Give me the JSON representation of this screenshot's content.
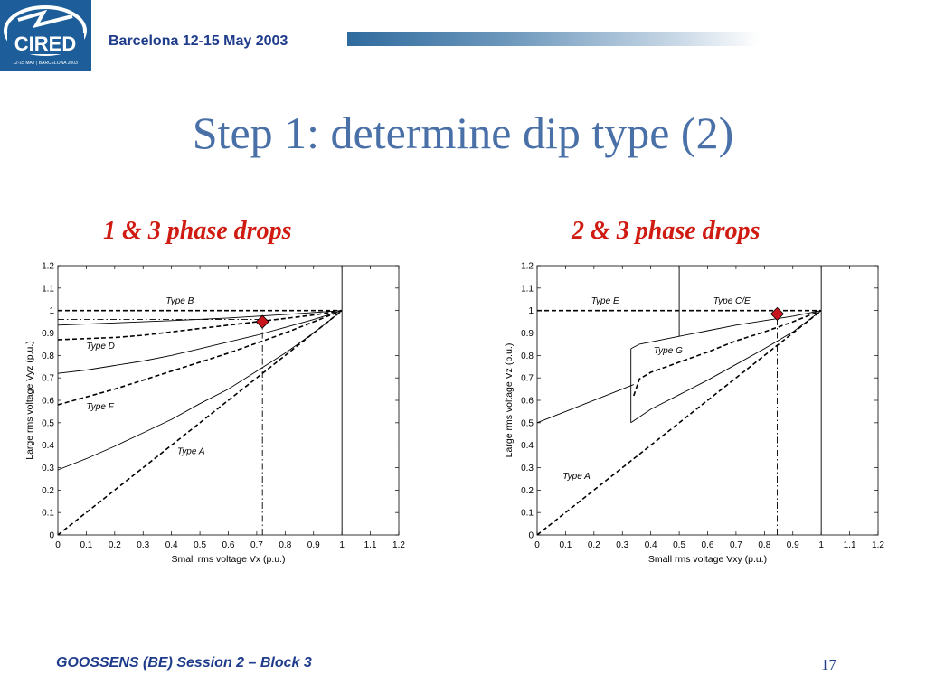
{
  "header": {
    "logo_text": "CIRED",
    "logo_subtext": "12-15 MAY | BARCELONA 2003",
    "event": "Barcelona  12-15 May 2003"
  },
  "slide": {
    "title": "Step 1: determine dip type (2)",
    "subheads": [
      "1 & 3 phase drops",
      "2 & 3 phase drops"
    ]
  },
  "footer": {
    "text": "GOOSSENS (BE) Session 2 – Block 3",
    "page": "17"
  },
  "colors": {
    "title": "#4a70a8",
    "header_text": "#1f3c8c",
    "subhead": "#d01b12",
    "marker": "#c8151d"
  },
  "chart_data": [
    {
      "type": "line",
      "xlabel": "Small rms voltage Vx (p.u.)",
      "ylabel": "Large rms voltage Vyz (p.u.)",
      "xlim": [
        0,
        1.2
      ],
      "ylim": [
        0,
        1.2
      ],
      "xticks": [
        0,
        0.1,
        0.2,
        0.3,
        0.4,
        0.5,
        0.6,
        0.7,
        0.8,
        0.9,
        1,
        1.1,
        1.2
      ],
      "yticks": [
        0,
        0.1,
        0.2,
        0.3,
        0.4,
        0.5,
        0.6,
        0.7,
        0.8,
        0.9,
        1,
        1.1,
        1.2
      ],
      "grid": false,
      "vlines": [
        1
      ],
      "series": [
        {
          "style": "dashed",
          "x": [
            0,
            1
          ],
          "y": [
            1,
            1
          ]
        },
        {
          "style": "dashed",
          "x": [
            0,
            0.1,
            0.2,
            0.3,
            0.4,
            0.5,
            0.6,
            0.7,
            0.8,
            0.9,
            1
          ],
          "y": [
            0.87,
            0.875,
            0.88,
            0.89,
            0.905,
            0.92,
            0.935,
            0.95,
            0.965,
            0.98,
            1
          ]
        },
        {
          "style": "dashed",
          "x": [
            0,
            0.1,
            0.2,
            0.3,
            0.4,
            0.5,
            0.6,
            0.7,
            0.8,
            0.9,
            1
          ],
          "y": [
            0.58,
            0.615,
            0.65,
            0.69,
            0.73,
            0.77,
            0.81,
            0.855,
            0.9,
            0.95,
            1
          ]
        },
        {
          "style": "dashed",
          "x": [
            0,
            1
          ],
          "y": [
            0,
            1
          ]
        },
        {
          "style": "solid",
          "x": [
            0,
            0.2,
            0.4,
            0.6,
            0.8,
            1
          ],
          "y": [
            0.935,
            0.945,
            0.955,
            0.967,
            0.982,
            1
          ]
        },
        {
          "style": "solid",
          "x": [
            0,
            0.1,
            0.2,
            0.3,
            0.4,
            0.5,
            0.6,
            0.7,
            0.8,
            0.9,
            1
          ],
          "y": [
            0.72,
            0.735,
            0.755,
            0.775,
            0.8,
            0.83,
            0.86,
            0.89,
            0.925,
            0.96,
            1
          ]
        },
        {
          "style": "solid",
          "x": [
            0,
            0.1,
            0.2,
            0.3,
            0.4,
            0.5,
            0.6,
            0.7,
            0.8,
            0.9,
            1
          ],
          "y": [
            0.29,
            0.34,
            0.395,
            0.455,
            0.515,
            0.585,
            0.65,
            0.73,
            0.81,
            0.9,
            1
          ]
        },
        {
          "style": "dashdot",
          "x": [
            0,
            0.72
          ],
          "y": [
            0.96,
            0.96
          ]
        },
        {
          "style": "dashdot",
          "x": [
            0.72,
            0.72
          ],
          "y": [
            0,
            0.95
          ]
        }
      ],
      "annotations": [
        {
          "text": "Type B",
          "x": 0.38,
          "y": 1.03
        },
        {
          "text": "Type D",
          "x": 0.1,
          "y": 0.83
        },
        {
          "text": "Type F",
          "x": 0.1,
          "y": 0.56
        },
        {
          "text": "Type A",
          "x": 0.42,
          "y": 0.36
        }
      ],
      "markers": [
        {
          "x": 0.72,
          "y": 0.95
        }
      ]
    },
    {
      "type": "line",
      "xlabel": "Small rms voltage Vxy (p.u.)",
      "ylabel": "Large rms voltage Vz (p.u.)",
      "xlim": [
        0,
        1.2
      ],
      "ylim": [
        0,
        1.2
      ],
      "xticks": [
        0,
        0.1,
        0.2,
        0.3,
        0.4,
        0.5,
        0.6,
        0.7,
        0.8,
        0.9,
        1,
        1.1,
        1.2
      ],
      "yticks": [
        0,
        0.1,
        0.2,
        0.3,
        0.4,
        0.5,
        0.6,
        0.7,
        0.8,
        0.9,
        1,
        1.1,
        1.2
      ],
      "grid": false,
      "vlines": [
        1
      ],
      "series": [
        {
          "style": "dashed",
          "x": [
            0,
            1
          ],
          "y": [
            1,
            1
          ]
        },
        {
          "style": "dashed",
          "x": [
            0,
            1
          ],
          "y": [
            0,
            1
          ]
        },
        {
          "style": "dashed",
          "x": [
            0.34,
            0.36,
            0.4,
            0.5,
            0.6,
            0.7,
            0.8,
            0.9,
            1
          ],
          "y": [
            0.62,
            0.695,
            0.725,
            0.77,
            0.815,
            0.865,
            0.905,
            0.95,
            1
          ]
        },
        {
          "style": "solid",
          "x": [
            0,
            0.34
          ],
          "y": [
            0.5,
            0.67
          ]
        },
        {
          "style": "solid",
          "x": [
            0.33,
            0.33
          ],
          "y": [
            0.5,
            0.83
          ]
        },
        {
          "style": "solid",
          "x": [
            0.33,
            0.4,
            0.5,
            0.6,
            0.7,
            0.8,
            0.9,
            1
          ],
          "y": [
            0.5,
            0.56,
            0.625,
            0.69,
            0.76,
            0.83,
            0.905,
            1
          ]
        },
        {
          "style": "solid",
          "x": [
            0.33,
            0.36,
            0.4,
            0.5,
            0.6,
            0.7,
            0.8,
            0.9,
            1
          ],
          "y": [
            0.83,
            0.85,
            0.86,
            0.885,
            0.91,
            0.935,
            0.955,
            0.975,
            1
          ]
        },
        {
          "style": "solid",
          "x": [
            0.5,
            0.5
          ],
          "y": [
            0.885,
            1.2
          ]
        },
        {
          "style": "dashdot",
          "x": [
            0,
            0.845
          ],
          "y": [
            0.985,
            0.985
          ]
        },
        {
          "style": "dashdot",
          "x": [
            0.845,
            0.845
          ],
          "y": [
            0,
            0.985
          ]
        }
      ],
      "annotations": [
        {
          "text": "Type E",
          "x": 0.19,
          "y": 1.03
        },
        {
          "text": "Type C/E",
          "x": 0.62,
          "y": 1.03
        },
        {
          "text": "Type G",
          "x": 0.41,
          "y": 0.81
        },
        {
          "text": "Type A",
          "x": 0.09,
          "y": 0.25
        }
      ],
      "markers": [
        {
          "x": 0.845,
          "y": 0.985
        }
      ]
    }
  ]
}
